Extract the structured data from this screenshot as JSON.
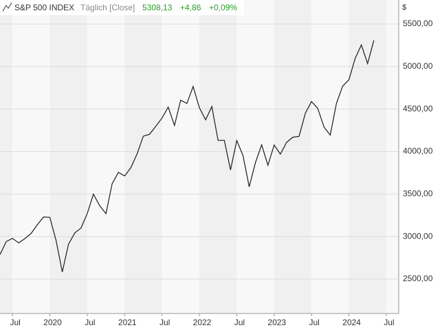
{
  "chart_data": {
    "type": "line",
    "title": "S&P 500 INDEX",
    "subtitle": "Täglich [Close]",
    "last_value": "5308,13",
    "change": "+4,86",
    "change_pct": "+0,09%",
    "y_unit": "$",
    "x": [
      "2019-05",
      "2019-06",
      "2019-07",
      "2019-08",
      "2019-09",
      "2019-10",
      "2019-11",
      "2019-12",
      "2020-01",
      "2020-02",
      "2020-03",
      "2020-04",
      "2020-05",
      "2020-06",
      "2020-07",
      "2020-08",
      "2020-09",
      "2020-10",
      "2020-11",
      "2020-12",
      "2021-01",
      "2021-02",
      "2021-03",
      "2021-04",
      "2021-05",
      "2021-06",
      "2021-07",
      "2021-08",
      "2021-09",
      "2021-10",
      "2021-11",
      "2021-12",
      "2022-01",
      "2022-02",
      "2022-03",
      "2022-04",
      "2022-05",
      "2022-06",
      "2022-07",
      "2022-08",
      "2022-09",
      "2022-10",
      "2022-11",
      "2022-12",
      "2023-01",
      "2023-02",
      "2023-03",
      "2023-04",
      "2023-05",
      "2023-06",
      "2023-07",
      "2023-08",
      "2023-09",
      "2023-10",
      "2023-11",
      "2023-12",
      "2024-01",
      "2024-02",
      "2024-03",
      "2024-04",
      "2024-05"
    ],
    "series": [
      {
        "name": "S&P 500 INDEX",
        "color": "#1a1a1a",
        "values": [
          2790,
          2942,
          2980,
          2926,
          2977,
          3038,
          3141,
          3231,
          3226,
          2954,
          2585,
          2912,
          3044,
          3100,
          3271,
          3500,
          3363,
          3270,
          3622,
          3756,
          3714,
          3811,
          3973,
          4181,
          4204,
          4298,
          4395,
          4523,
          4308,
          4605,
          4567,
          4766,
          4516,
          4374,
          4530,
          4132,
          4132,
          3785,
          4130,
          3955,
          3586,
          3872,
          4080,
          3840,
          4077,
          3970,
          4109,
          4169,
          4180,
          4450,
          4589,
          4508,
          4288,
          4194,
          4568,
          4770,
          4846,
          5096,
          5254,
          5036,
          5308
        ]
      }
    ],
    "xlim": [
      "2019-05",
      "2024-09"
    ],
    "xticks": [
      {
        "value": "2019-07",
        "label": "Jul"
      },
      {
        "value": "2020-01",
        "label": "2020"
      },
      {
        "value": "2020-07",
        "label": "Jul"
      },
      {
        "value": "2021-01",
        "label": "2021"
      },
      {
        "value": "2021-07",
        "label": "Jul"
      },
      {
        "value": "2022-01",
        "label": "2022"
      },
      {
        "value": "2022-07",
        "label": "Jul"
      },
      {
        "value": "2023-01",
        "label": "2023"
      },
      {
        "value": "2023-07",
        "label": "Jul"
      },
      {
        "value": "2024-01",
        "label": "2024"
      },
      {
        "value": "2024-07",
        "label": "Jul"
      }
    ],
    "ylim": [
      2096,
      5783
    ],
    "yticks": [
      {
        "value": 2500,
        "label": "2500,00"
      },
      {
        "value": 3000,
        "label": "3000,00"
      },
      {
        "value": 3500,
        "label": "3500,00"
      },
      {
        "value": 4000,
        "label": "4000,00"
      },
      {
        "value": 4500,
        "label": "4500,00"
      },
      {
        "value": 5000,
        "label": "5000,00"
      },
      {
        "value": 5500,
        "label": "5500,00"
      }
    ],
    "grid": true
  }
}
